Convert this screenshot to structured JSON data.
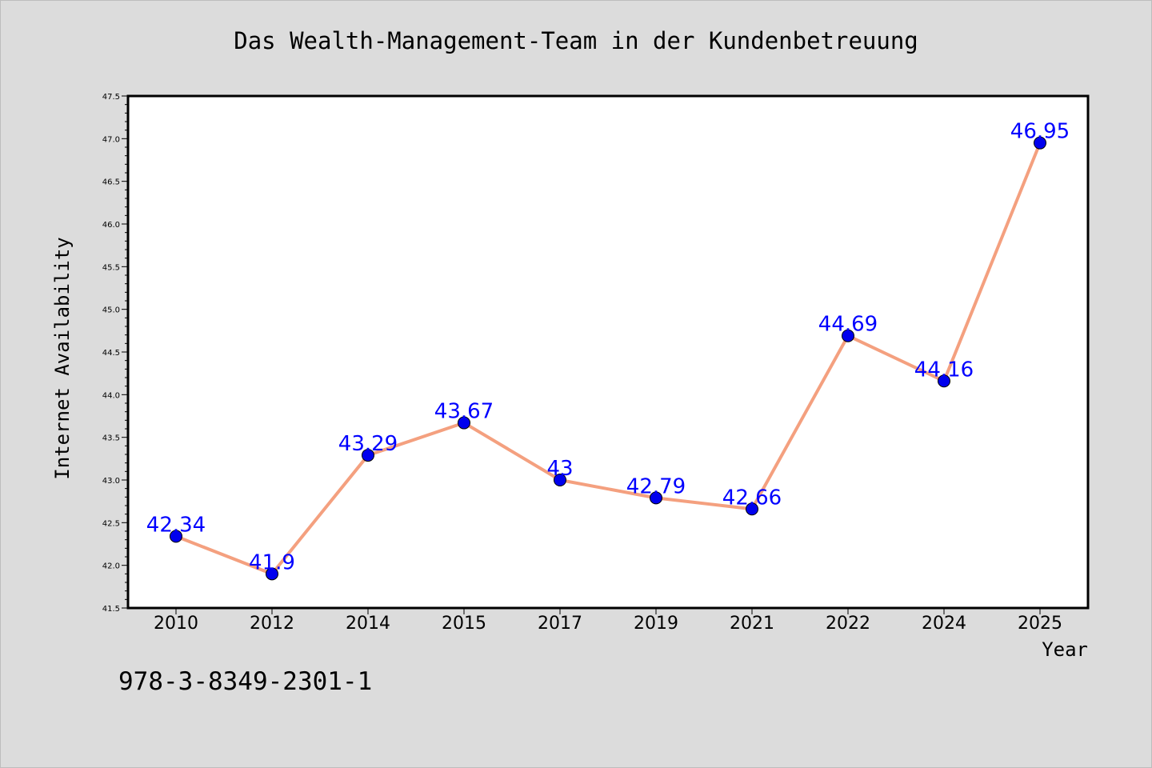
{
  "chart_data": {
    "type": "line",
    "title": "Das Wealth-Management-Team in der Kundenbetreuung",
    "xlabel": "Year",
    "ylabel": "Internet Availability",
    "categories": [
      "2010",
      "2012",
      "2014",
      "2015",
      "2017",
      "2019",
      "2021",
      "2022",
      "2024",
      "2025"
    ],
    "series": [
      {
        "values": [
          42.34,
          41.9,
          43.29,
          43.67,
          43,
          42.79,
          42.66,
          44.69,
          44.16,
          46.95
        ],
        "data_labels": [
          "42.34",
          "41.9",
          "43.29",
          "43.67",
          "43",
          "42.79",
          "42.66",
          "44.69",
          "44.16",
          "46.95"
        ],
        "line_color": "#f4a07f",
        "marker_color": "#0000ee"
      }
    ],
    "ylim": [
      41.5,
      47.5
    ],
    "yticks": [
      "41.5",
      "42.0",
      "42.5",
      "43.0",
      "43.5",
      "44.0",
      "44.5",
      "45.0",
      "45.5",
      "46.0",
      "46.5",
      "47.0",
      "47.5"
    ],
    "grid": false,
    "legend": "none"
  },
  "footer": {
    "isbn": "978-3-8349-2301-1"
  },
  "colors": {
    "background": "#dcdcdc",
    "plot_area": "#ffffff",
    "label_color": "#0000ff"
  }
}
